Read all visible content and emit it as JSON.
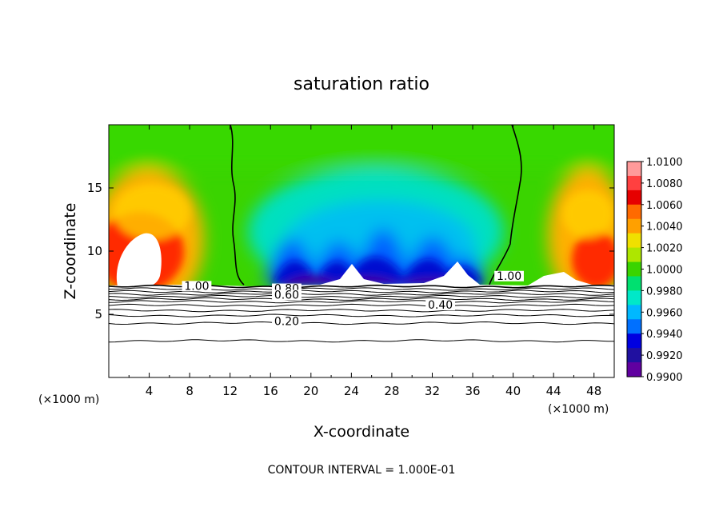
{
  "chart_data": {
    "type": "heatmap",
    "title": "saturation ratio",
    "xlabel": "X-coordinate",
    "ylabel": "Z-coordinate",
    "x_unit_left": "(×1000 m)",
    "x_unit_right": "(×1000 m)",
    "xlim": [
      0,
      50
    ],
    "ylim": [
      0,
      20
    ],
    "x_ticks": [
      "4",
      "8",
      "12",
      "16",
      "20",
      "24",
      "28",
      "32",
      "36",
      "40",
      "44",
      "48"
    ],
    "x_tick_values": [
      4,
      8,
      12,
      16,
      20,
      24,
      28,
      32,
      36,
      40,
      44,
      48
    ],
    "y_ticks": [
      "5",
      "10",
      "15"
    ],
    "y_tick_values": [
      5,
      10,
      15
    ],
    "footer": "CONTOUR INTERVAL = 1.000E-01",
    "colorbar": {
      "levels": [
        "1.0100",
        "1.0080",
        "1.0060",
        "1.0040",
        "1.0020",
        "1.0000",
        "0.9980",
        "0.9960",
        "0.9940",
        "0.9920",
        "0.9900"
      ],
      "colors": [
        "#ff9a9a",
        "#ff4040",
        "#e60000",
        "#ff6a00",
        "#ffa000",
        "#f0e000",
        "#aee600",
        "#3ad400",
        "#00e070",
        "#00e8c8",
        "#00b8ff",
        "#0070ff",
        "#0000e0",
        "#2010a0",
        "#6000a0"
      ]
    },
    "contour_labels": [
      {
        "text": "1.00",
        "x": 8.7,
        "z": 7.0
      },
      {
        "text": "0.80",
        "x": 17.6,
        "z": 6.8
      },
      {
        "text": "0.60",
        "x": 17.6,
        "z": 6.3
      },
      {
        "text": "0.40",
        "x": 32.8,
        "z": 5.5
      },
      {
        "text": "0.20",
        "x": 17.6,
        "z": 4.2
      },
      {
        "text": "1.00",
        "x": 39.6,
        "z": 7.8
      }
    ],
    "contour_levels_below": [
      7.2,
      7.0,
      6.8,
      6.6,
      6.4,
      6.2,
      6.0,
      5.7,
      5.3,
      4.9,
      4.3,
      2.9
    ],
    "colors": {
      "background": "#ffffff",
      "contour": "#000000",
      "unsaturated": "#ffffff"
    }
  }
}
